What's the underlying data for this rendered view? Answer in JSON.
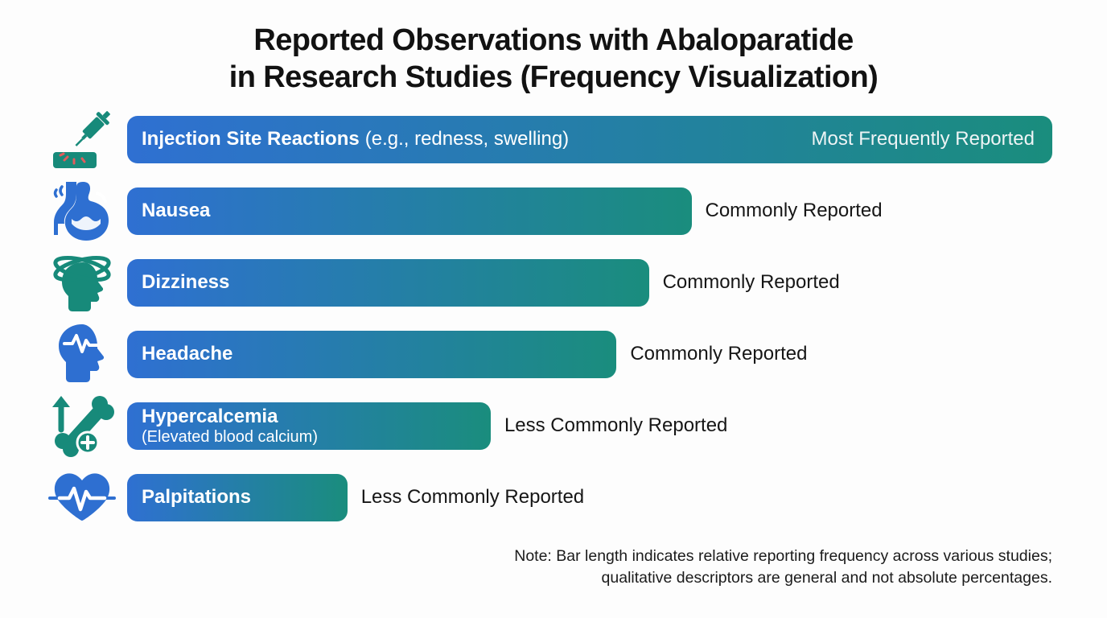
{
  "title": {
    "line1": "Reported Observations with Abaloparatide",
    "line2": "in Research Studies (Frequency Visualization)"
  },
  "colors": {
    "bar_gradient_start": "#2f70d2",
    "bar_gradient_end": "#1a8d7d",
    "icon_blue": "#2e6fd1",
    "icon_teal": "#178a7a",
    "icon_red_accent": "#e25c5c",
    "background": "#fdfdfd",
    "text_dark": "#141414"
  },
  "rows": [
    {
      "icon": "syringe-injection-site-icon",
      "label": "Injection Site Reactions",
      "detail": "(e.g., redness, swelling)",
      "frequency": "Most Frequently Reported",
      "frequency_position": "inside-bar",
      "bar_width_pct": 100
    },
    {
      "icon": "stomach-icon",
      "label": "Nausea",
      "detail": "",
      "frequency": "Commonly Reported",
      "frequency_position": "right-of-bar",
      "bar_width_pct": 61
    },
    {
      "icon": "dizzy-head-icon",
      "label": "Dizziness",
      "detail": "",
      "frequency": "Commonly Reported",
      "frequency_position": "right-of-bar",
      "bar_width_pct": 56.4
    },
    {
      "icon": "head-pulse-icon",
      "label": "Headache",
      "detail": "",
      "frequency": "Commonly Reported",
      "frequency_position": "right-of-bar",
      "bar_width_pct": 52.9
    },
    {
      "icon": "bone-calcium-increase-icon",
      "label": "Hypercalcemia",
      "detail": "(Elevated blood calcium)",
      "frequency": "Less Commonly Reported",
      "frequency_position": "right-of-bar",
      "bar_width_pct": 39.3
    },
    {
      "icon": "heart-palpitations-icon",
      "label": "Palpitations",
      "detail": "",
      "frequency": "Less Commonly Reported",
      "frequency_position": "right-of-bar",
      "bar_width_pct": 23.8
    }
  ],
  "note": {
    "line1": "Note: Bar length indicates relative reporting frequency across various studies;",
    "line2": "qualitative descriptors are general and not absolute percentages."
  },
  "chart_data": {
    "type": "bar",
    "orientation": "horizontal",
    "title": "Reported Observations with Abaloparatide in Research Studies (Frequency Visualization)",
    "categories": [
      "Injection Site Reactions (e.g., redness, swelling)",
      "Nausea",
      "Dizziness",
      "Headache",
      "Hypercalcemia (Elevated blood calcium)",
      "Palpitations"
    ],
    "values_relative_bar_length_pct": [
      100,
      61,
      56.4,
      52.9,
      39.3,
      23.8
    ],
    "value_labels": [
      "Most Frequently Reported",
      "Commonly Reported",
      "Commonly Reported",
      "Commonly Reported",
      "Less Commonly Reported",
      "Less Commonly Reported"
    ],
    "xlabel": "",
    "ylabel": "",
    "legend": false,
    "grid": false,
    "annotation": "Note: Bar length indicates relative reporting frequency across various studies; qualitative descriptors are general and not absolute percentages."
  }
}
